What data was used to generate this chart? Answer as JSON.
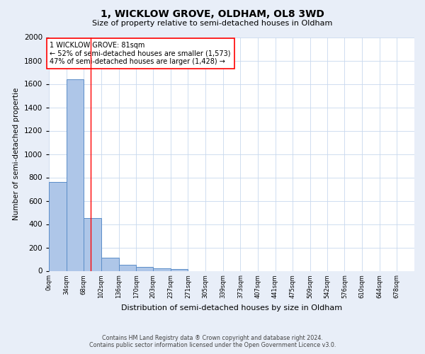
{
  "title": "1, WICKLOW GROVE, OLDHAM, OL8 3WD",
  "subtitle": "Size of property relative to semi-detached houses in Oldham",
  "xlabel": "Distribution of semi-detached houses by size in Oldham",
  "ylabel": "Number of semi-detached propertie",
  "footer_line1": "Contains HM Land Registry data ® Crown copyright and database right 2024.",
  "footer_line2": "Contains public sector information licensed under the Open Government Licence v3.0.",
  "annotation_line1": "1 WICKLOW GROVE: 81sqm",
  "annotation_line2": "← 52% of semi-detached houses are smaller (1,573)",
  "annotation_line3": "47% of semi-detached houses are larger (1,428) →",
  "bar_left_edges": [
    0,
    34,
    68,
    102,
    136,
    170,
    203,
    237,
    271,
    305,
    339,
    373,
    407,
    441,
    475,
    509,
    542,
    576,
    610,
    644
  ],
  "bar_widths": [
    34,
    34,
    34,
    34,
    34,
    33,
    34,
    34,
    34,
    34,
    34,
    34,
    34,
    34,
    34,
    33,
    34,
    34,
    34,
    34
  ],
  "bar_heights": [
    760,
    1640,
    450,
    113,
    52,
    35,
    22,
    14,
    0,
    0,
    0,
    0,
    0,
    0,
    0,
    0,
    0,
    0,
    0,
    0
  ],
  "bar_color": "#aec6e8",
  "bar_edge_color": "#5b8dc8",
  "property_line_x": 81,
  "property_line_color": "red",
  "ylim": [
    0,
    2000
  ],
  "yticks": [
    0,
    200,
    400,
    600,
    800,
    1000,
    1200,
    1400,
    1600,
    1800,
    2000
  ],
  "x_tick_labels": [
    "0sqm",
    "34sqm",
    "68sqm",
    "102sqm",
    "136sqm",
    "170sqm",
    "203sqm",
    "237sqm",
    "271sqm",
    "305sqm",
    "339sqm",
    "373sqm",
    "407sqm",
    "441sqm",
    "475sqm",
    "509sqm",
    "542sqm",
    "576sqm",
    "610sqm",
    "644sqm",
    "678sqm"
  ],
  "bg_color": "#e8eef8",
  "plot_bg_color": "#ffffff",
  "grid_color": "#c8d8ee"
}
